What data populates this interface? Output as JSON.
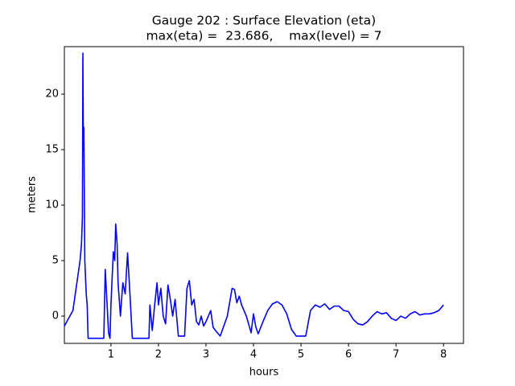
{
  "chart_data": {
    "type": "line",
    "title": "Gauge 202 : Surface Elevation (eta)",
    "subtitle": "max(eta) =  23.686,    max(level) = 7",
    "xlabel": "hours",
    "ylabel": "meters",
    "xlim": [
      0.02,
      8.42
    ],
    "ylim": [
      -2.46,
      24.28
    ],
    "xticks": [
      1,
      2,
      3,
      4,
      5,
      6,
      7,
      8
    ],
    "yticks": [
      0,
      5,
      10,
      15,
      20
    ],
    "grid": false,
    "series": [
      {
        "color": "#0000ff",
        "x": [
          0.02,
          0.2,
          0.3,
          0.35,
          0.38,
          0.4,
          0.41,
          0.42,
          0.43,
          0.45,
          0.48,
          0.5,
          0.52,
          0.85,
          0.88,
          0.92,
          0.95,
          0.98,
          1.0,
          1.05,
          1.08,
          1.1,
          1.13,
          1.15,
          1.2,
          1.25,
          1.3,
          1.35,
          1.4,
          1.45,
          1.8,
          1.82,
          1.87,
          1.92,
          1.97,
          2.0,
          2.05,
          2.1,
          2.15,
          2.2,
          2.25,
          2.3,
          2.35,
          2.42,
          2.55,
          2.6,
          2.65,
          2.7,
          2.75,
          2.8,
          2.85,
          2.9,
          2.95,
          3.0,
          3.05,
          3.1,
          3.15,
          3.2,
          3.3,
          3.45,
          3.55,
          3.6,
          3.65,
          3.7,
          3.75,
          3.85,
          3.95,
          4.0,
          4.05,
          4.1,
          4.2,
          4.3,
          4.4,
          4.5,
          4.6,
          4.7,
          4.8,
          4.9,
          5.0,
          5.1,
          5.2,
          5.3,
          5.4,
          5.5,
          5.6,
          5.7,
          5.8,
          5.9,
          6.0,
          6.1,
          6.2,
          6.3,
          6.4,
          6.5,
          6.6,
          6.7,
          6.8,
          6.9,
          7.0,
          7.1,
          7.2,
          7.3,
          7.4,
          7.5,
          7.6,
          7.7,
          7.8,
          7.9,
          8.0
        ],
        "values": [
          -0.9,
          0.5,
          3.5,
          5,
          6.5,
          9,
          23.7,
          15,
          17,
          5,
          2,
          1,
          -2,
          -2,
          4.2,
          1,
          -1.5,
          -2,
          1,
          5.8,
          5,
          8.3,
          6.5,
          3,
          0,
          3,
          2,
          5.7,
          2,
          -2,
          -2,
          1,
          -1.3,
          1,
          3,
          1,
          2.5,
          0,
          -0.7,
          2.8,
          1.5,
          0,
          1.5,
          -1.8,
          -1.8,
          2.5,
          3.2,
          1,
          1.5,
          -0.5,
          -0.8,
          0,
          -0.9,
          -0.5,
          0,
          0.5,
          -1,
          -1.3,
          -1.8,
          0,
          2.5,
          2.4,
          1.2,
          1.8,
          1,
          0,
          -1.5,
          0.2,
          -1,
          -1.6,
          -0.5,
          0.5,
          1.1,
          1.3,
          1,
          0.2,
          -1.2,
          -1.8,
          -1.8,
          -1.8,
          0.5,
          1,
          0.8,
          1.1,
          0.6,
          0.9,
          0.9,
          0.5,
          0.4,
          -0.3,
          -0.7,
          -0.8,
          -0.5,
          0,
          0.4,
          0.2,
          0.3,
          -0.2,
          -0.4,
          0,
          -0.2,
          0.2,
          0.4,
          0.1,
          0.2,
          0.2,
          0.3,
          0.5,
          1.0
        ]
      }
    ]
  }
}
